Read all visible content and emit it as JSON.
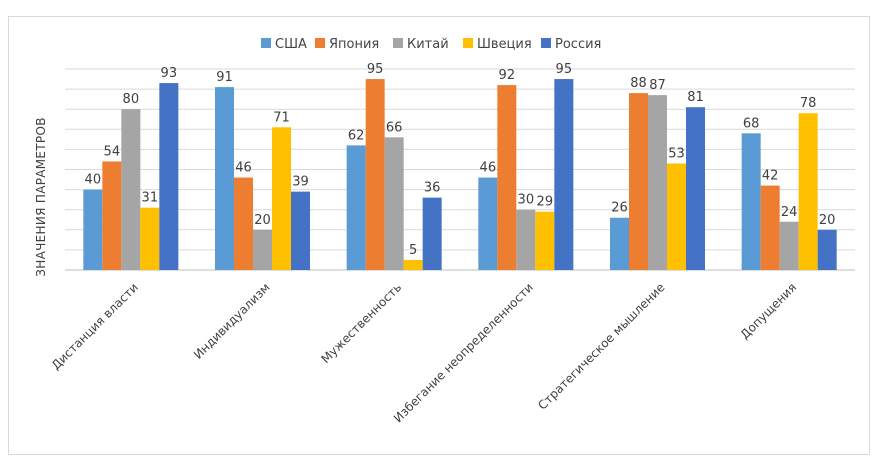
{
  "chart_data": {
    "type": "bar",
    "title": "",
    "xlabel": "",
    "ylabel": "ЗНАЧЕНИЯ ПАРАМЕТРОВ",
    "ylim": [
      0,
      100
    ],
    "grid": true,
    "legend": "top",
    "categories": [
      "Дистанция власти",
      "Индивидуализм",
      "Мужественность",
      "Избегание неопределенности",
      "Стратегическое мышление",
      "Допущения"
    ],
    "series": [
      {
        "name": "США",
        "color": "#5B9BD5",
        "values": [
          40,
          91,
          62,
          46,
          26,
          68
        ]
      },
      {
        "name": "Япония",
        "color": "#ED7D31",
        "values": [
          54,
          46,
          95,
          92,
          88,
          42
        ]
      },
      {
        "name": "Китай",
        "color": "#A5A5A5",
        "values": [
          80,
          20,
          66,
          30,
          87,
          24
        ]
      },
      {
        "name": "Швеция",
        "color": "#FFC000",
        "values": [
          31,
          71,
          5,
          29,
          53,
          78
        ]
      },
      {
        "name": "Россия",
        "color": "#4472C4",
        "values": [
          93,
          39,
          36,
          95,
          81,
          20
        ]
      }
    ]
  }
}
